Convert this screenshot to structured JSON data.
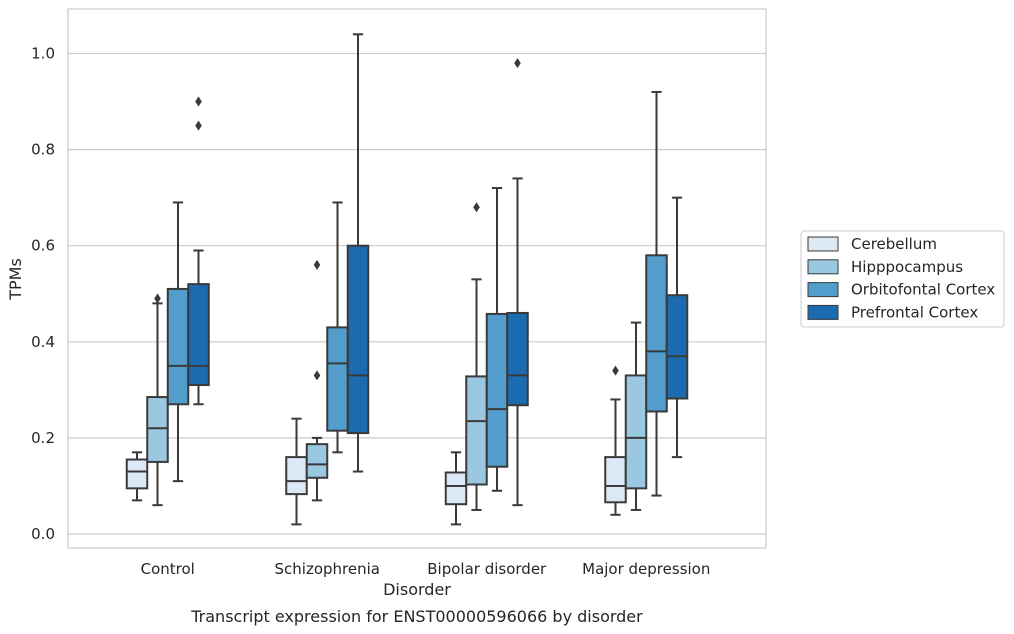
{
  "caption": "Transcript expression for ENST00000596066 by disorder",
  "chart_data": {
    "type": "box",
    "title": "",
    "xlabel": "Disorder",
    "ylabel": "TPMs",
    "ylim": [
      -0.03,
      1.09
    ],
    "yticks": [
      0.0,
      0.2,
      0.4,
      0.6,
      0.8,
      1.0
    ],
    "ytick_labels": [
      "0.0",
      "0.2",
      "0.4",
      "0.6",
      "0.8",
      "1.0"
    ],
    "grid": "horizontal",
    "legend_position": "right",
    "categories": [
      "Control",
      "Schizophrenia",
      "Bipolar disorder",
      "Major depression"
    ],
    "series": [
      {
        "name": "Cerebellum",
        "color": "#dbe9f6",
        "boxes": [
          {
            "whisker_low": 0.07,
            "q1": 0.095,
            "median": 0.13,
            "q3": 0.155,
            "whisker_high": 0.17,
            "outliers": []
          },
          {
            "whisker_low": 0.02,
            "q1": 0.083,
            "median": 0.11,
            "q3": 0.16,
            "whisker_high": 0.24,
            "outliers": []
          },
          {
            "whisker_low": 0.02,
            "q1": 0.062,
            "median": 0.1,
            "q3": 0.128,
            "whisker_high": 0.17,
            "outliers": []
          },
          {
            "whisker_low": 0.04,
            "q1": 0.066,
            "median": 0.1,
            "q3": 0.16,
            "whisker_high": 0.28,
            "outliers": [
              0.34
            ]
          }
        ]
      },
      {
        "name": "Hipppocampus",
        "color": "#9ac8e0",
        "boxes": [
          {
            "whisker_low": 0.06,
            "q1": 0.15,
            "median": 0.22,
            "q3": 0.285,
            "whisker_high": 0.48,
            "outliers": [
              0.49
            ]
          },
          {
            "whisker_low": 0.07,
            "q1": 0.117,
            "median": 0.145,
            "q3": 0.187,
            "whisker_high": 0.2,
            "outliers": [
              0.33,
              0.56
            ]
          },
          {
            "whisker_low": 0.05,
            "q1": 0.103,
            "median": 0.235,
            "q3": 0.328,
            "whisker_high": 0.53,
            "outliers": [
              0.68
            ]
          },
          {
            "whisker_low": 0.05,
            "q1": 0.095,
            "median": 0.2,
            "q3": 0.33,
            "whisker_high": 0.44,
            "outliers": []
          }
        ]
      },
      {
        "name": "Orbitofontal Cortex",
        "color": "#529dcc",
        "boxes": [
          {
            "whisker_low": 0.11,
            "q1": 0.27,
            "median": 0.35,
            "q3": 0.51,
            "whisker_high": 0.69,
            "outliers": []
          },
          {
            "whisker_low": 0.17,
            "q1": 0.215,
            "median": 0.355,
            "q3": 0.43,
            "whisker_high": 0.69,
            "outliers": []
          },
          {
            "whisker_low": 0.09,
            "q1": 0.14,
            "median": 0.26,
            "q3": 0.458,
            "whisker_high": 0.72,
            "outliers": []
          },
          {
            "whisker_low": 0.08,
            "q1": 0.255,
            "median": 0.38,
            "q3": 0.58,
            "whisker_high": 0.92,
            "outliers": []
          }
        ]
      },
      {
        "name": "Prefrontal Cortex",
        "color": "#1c6aaf",
        "boxes": [
          {
            "whisker_low": 0.27,
            "q1": 0.31,
            "median": 0.35,
            "q3": 0.52,
            "whisker_high": 0.59,
            "outliers": [
              0.85,
              0.9
            ]
          },
          {
            "whisker_low": 0.13,
            "q1": 0.21,
            "median": 0.33,
            "q3": 0.6,
            "whisker_high": 1.04,
            "outliers": []
          },
          {
            "whisker_low": 0.06,
            "q1": 0.268,
            "median": 0.33,
            "q3": 0.46,
            "whisker_high": 0.74,
            "outliers": [
              0.98
            ]
          },
          {
            "whisker_low": 0.16,
            "q1": 0.282,
            "median": 0.37,
            "q3": 0.497,
            "whisker_high": 0.7,
            "outliers": []
          }
        ]
      }
    ]
  }
}
